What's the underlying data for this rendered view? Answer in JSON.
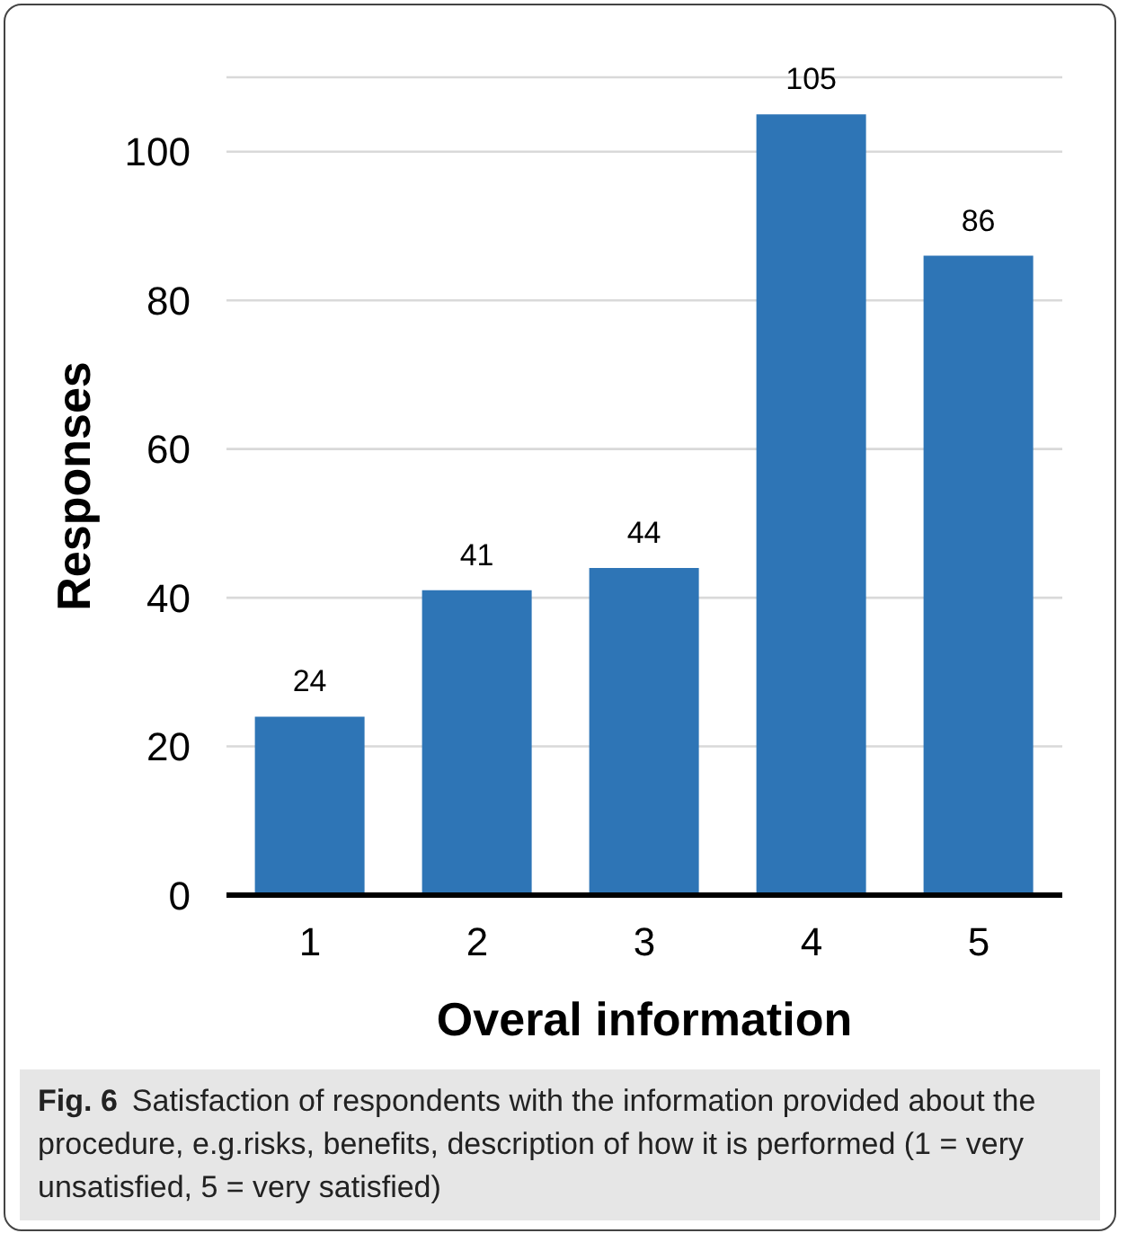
{
  "chart_data": {
    "type": "bar",
    "xlabel": "Overal information",
    "ylabel": "Responses",
    "categories": [
      "1",
      "2",
      "3",
      "4",
      "5"
    ],
    "values": [
      24,
      41,
      44,
      105,
      86
    ],
    "color": "#2e75b6",
    "ylim": [
      0,
      110
    ],
    "yticks": [
      0,
      20,
      40,
      60,
      80,
      100
    ],
    "grid": "y",
    "data_labels": true,
    "annotations": [
      "Fig. 6",
      "Satisfaction of respondents with the information provided about the procedure, e.g.risks, benefits, description of how it is performed (1 = very unsatisfied, 5 = very satisfied)"
    ]
  }
}
